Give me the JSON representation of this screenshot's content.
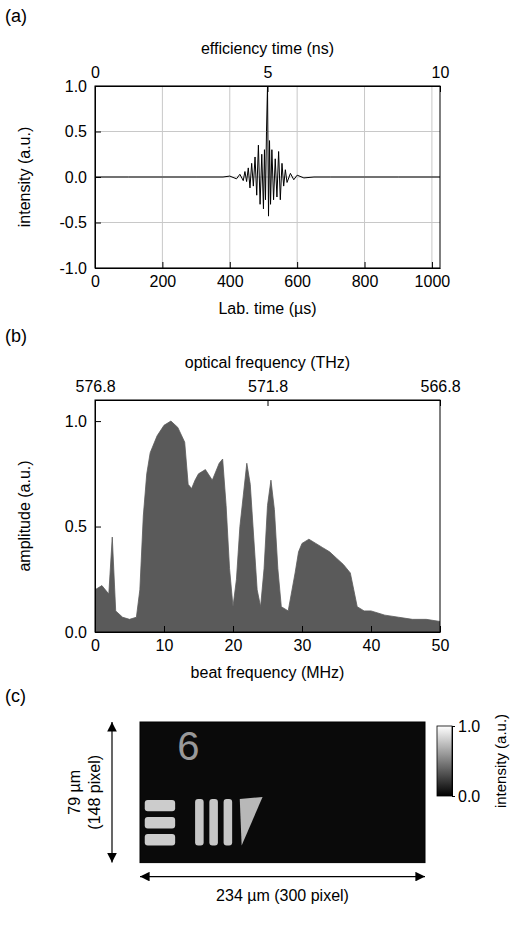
{
  "chart_data": [
    {
      "panel": "(a)",
      "type": "line",
      "x_label": "Lab. time (µs)",
      "x2_label": "efficiency time (ns)",
      "y_label": "intensity (a.u.)",
      "x": [
        0,
        100,
        200,
        300,
        380,
        400,
        420,
        430,
        440,
        445,
        450,
        455,
        460,
        465,
        470,
        475,
        480,
        485,
        490,
        495,
        500,
        503,
        506,
        509,
        512,
        515,
        518,
        521,
        525,
        530,
        535,
        540,
        545,
        550,
        555,
        560,
        565,
        570,
        580,
        590,
        600,
        620,
        650,
        700,
        800,
        900,
        1000,
        1024
      ],
      "values": [
        0,
        0,
        0,
        0,
        0,
        0.01,
        -0.02,
        0.03,
        -0.04,
        0.06,
        -0.05,
        0.1,
        -0.12,
        0.15,
        -0.1,
        0.22,
        -0.2,
        0.35,
        -0.3,
        0.25,
        -0.35,
        0.3,
        -0.25,
        0.5,
        1.0,
        -0.43,
        0.4,
        -0.3,
        0.3,
        -0.25,
        0.2,
        -0.22,
        0.28,
        -0.25,
        0.15,
        -0.1,
        0.08,
        -0.06,
        0.04,
        -0.03,
        0.02,
        -0.01,
        0,
        0,
        0,
        0,
        0,
        0
      ],
      "color": "#000000",
      "xlim": [
        0,
        1024
      ],
      "xticks": [
        0,
        200,
        400,
        600,
        800,
        1000
      ],
      "x2lim": [
        0,
        10
      ],
      "x2ticks": [
        0,
        5,
        10
      ],
      "ylim": [
        -1,
        1
      ],
      "yticks": [
        {
          "value": -1,
          "label": "-1.0"
        },
        {
          "value": -0.5,
          "label": "-0.5"
        },
        {
          "value": 0,
          "label": "0.0"
        },
        {
          "value": 0.5,
          "label": "0.5"
        },
        {
          "value": 1,
          "label": "1.0"
        }
      ],
      "grid": true
    },
    {
      "panel": "(b)",
      "type": "area",
      "x_label": "beat frequency (MHz)",
      "x2_label": "optical frequency (THz)",
      "y_label": "amplitude (a.u.)",
      "x": [
        0,
        1,
        2,
        2.5,
        3,
        4,
        5,
        6,
        6.5,
        7,
        7.5,
        8,
        9,
        10,
        11,
        12,
        13,
        13.5,
        14,
        14.5,
        15,
        16,
        17,
        18,
        18.5,
        19,
        19.5,
        20,
        20.5,
        21,
        21.5,
        22,
        22.5,
        23,
        23.5,
        24,
        24.5,
        25,
        25.5,
        26,
        26.5,
        27,
        28,
        29,
        29.5,
        30,
        31,
        32,
        33,
        34,
        35,
        36,
        37,
        37.5,
        38,
        39,
        40,
        41,
        42,
        44,
        46,
        48,
        50
      ],
      "values": [
        0.2,
        0.22,
        0.18,
        0.45,
        0.1,
        0.07,
        0.06,
        0.07,
        0.2,
        0.55,
        0.75,
        0.85,
        0.93,
        0.98,
        1.0,
        0.97,
        0.9,
        0.7,
        0.68,
        0.72,
        0.75,
        0.77,
        0.72,
        0.8,
        0.82,
        0.6,
        0.3,
        0.12,
        0.25,
        0.5,
        0.65,
        0.8,
        0.7,
        0.45,
        0.2,
        0.12,
        0.3,
        0.6,
        0.72,
        0.58,
        0.3,
        0.12,
        0.1,
        0.28,
        0.38,
        0.42,
        0.44,
        0.42,
        0.4,
        0.38,
        0.35,
        0.32,
        0.28,
        0.2,
        0.12,
        0.1,
        0.1,
        0.09,
        0.08,
        0.07,
        0.06,
        0.06,
        0.05
      ],
      "color": "#5a5a5a",
      "xlim": [
        0,
        50
      ],
      "xticks": [
        0,
        10,
        20,
        30,
        40,
        50
      ],
      "x2lim": [
        576.8,
        566.8
      ],
      "x2ticks": [
        576.8,
        571.8,
        566.8
      ],
      "ylim": [
        0,
        1.1
      ],
      "yticks": [
        {
          "value": 0,
          "label": "0.0"
        },
        {
          "value": 0.5,
          "label": "0.5"
        },
        {
          "value": 1,
          "label": "1.0"
        }
      ],
      "grid": false
    },
    {
      "panel": "(c)",
      "type": "image",
      "xlim": [
        0,
        300
      ],
      "ylim": [
        0,
        148
      ],
      "tick_labels": false,
      "x_dimension_label": "234 µm (300 pixel)",
      "y_dimension_label": "79 µm (148 pixel)",
      "background_intensity": 0.04,
      "features": [
        {
          "shape": "text",
          "label": "6",
          "x": 51,
          "y": 25,
          "intensity": 0.6
        },
        {
          "shape": "rect",
          "x": 5,
          "y": 82,
          "width": 32,
          "height": 12,
          "intensity": 0.8
        },
        {
          "shape": "rect",
          "x": 5,
          "y": 100,
          "width": 32,
          "height": 12,
          "intensity": 0.8
        },
        {
          "shape": "rect",
          "x": 5,
          "y": 118,
          "width": 32,
          "height": 12,
          "intensity": 0.8
        },
        {
          "shape": "rect",
          "x": 58,
          "y": 81,
          "width": 9,
          "height": 49,
          "intensity": 0.78
        },
        {
          "shape": "rect",
          "x": 73,
          "y": 81,
          "width": 9,
          "height": 49,
          "intensity": 0.78
        },
        {
          "shape": "rect",
          "x": 88,
          "y": 81,
          "width": 9,
          "height": 49,
          "intensity": 0.78
        },
        {
          "shape": "polygon",
          "points": [
            [
              105,
              81
            ],
            [
              129,
              79
            ],
            [
              107,
              130
            ]
          ],
          "intensity": 0.72
        }
      ],
      "colorbar": {
        "label": "intensity (a.u.)",
        "lim": [
          0,
          1
        ],
        "ticks": [
          {
            "value": 0,
            "label": "0.0"
          },
          {
            "value": 1,
            "label": "1.0"
          }
        ]
      }
    }
  ]
}
